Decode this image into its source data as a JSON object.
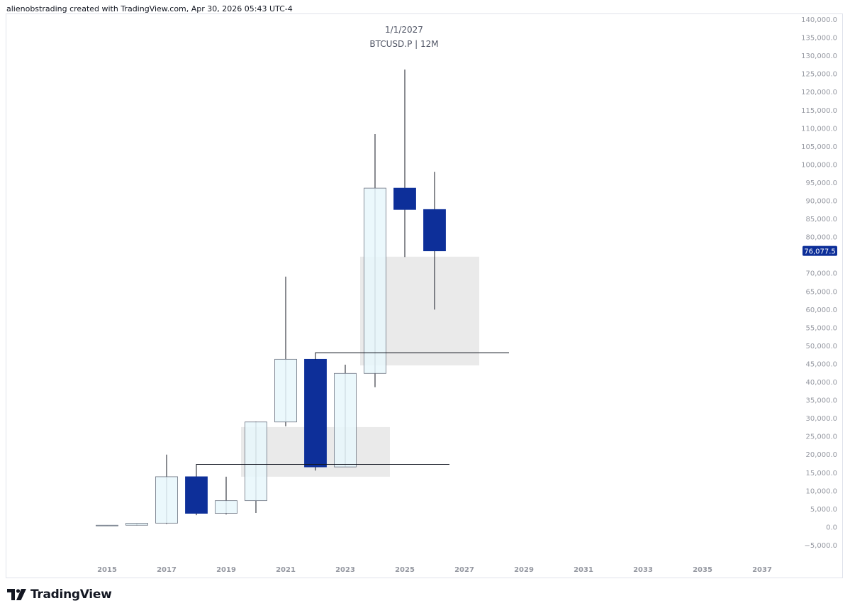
{
  "header": {
    "credit": "alienobstrading created with TradingView.com, Apr 30, 2026 05:43 UTC-4"
  },
  "chart_title": {
    "date": "1/1/2027",
    "symbol": "BTCUSD.P | 12M"
  },
  "brand": {
    "name": "TradingView"
  },
  "colors": {
    "up_fill": "#e8f7fc",
    "down_fill": "#0d2f99",
    "wick": "#131722",
    "zone": "#e6e6e6",
    "price_tag": "#0d2f99"
  },
  "chart_data": {
    "type": "candlestick",
    "timeframe": "12M",
    "ylim": [
      -5000,
      140000
    ],
    "y_ticks": [
      "140,000.0",
      "135,000.0",
      "130,000.0",
      "125,000.0",
      "120,000.0",
      "115,000.0",
      "110,000.0",
      "105,000.0",
      "100,000.0",
      "95,000.0",
      "90,000.0",
      "85,000.0",
      "80,000.0",
      "70,000.0",
      "65,000.0",
      "60,000.0",
      "55,000.0",
      "50,000.0",
      "45,000.0",
      "40,000.0",
      "35,000.0",
      "30,000.0",
      "25,000.0",
      "20,000.0",
      "15,000.0",
      "10,000.0",
      "5,000.0",
      "0.0",
      "−5,000.0"
    ],
    "x_ticks": [
      "2015",
      "2017",
      "2019",
      "2021",
      "2023",
      "2025",
      "2027",
      "2029",
      "2031",
      "2033",
      "2035",
      "2037"
    ],
    "last_price_label": "76,077.5",
    "last_price": 76077.5,
    "candles": [
      {
        "year": 2015,
        "open": 300,
        "high": 450,
        "low": 200,
        "close": 430
      },
      {
        "year": 2016,
        "open": 430,
        "high": 980,
        "low": 360,
        "close": 960
      },
      {
        "year": 2017,
        "open": 1000,
        "high": 19900,
        "low": 780,
        "close": 13800
      },
      {
        "year": 2018,
        "open": 13800,
        "high": 17200,
        "low": 3200,
        "close": 3700
      },
      {
        "year": 2019,
        "open": 3700,
        "high": 13800,
        "low": 3400,
        "close": 7200
      },
      {
        "year": 2020,
        "open": 7200,
        "high": 29000,
        "low": 3800,
        "close": 28900
      },
      {
        "year": 2021,
        "open": 28900,
        "high": 69000,
        "low": 27700,
        "close": 46200
      },
      {
        "year": 2022,
        "open": 46200,
        "high": 48000,
        "low": 15500,
        "close": 16500
      },
      {
        "year": 2023,
        "open": 16500,
        "high": 44700,
        "low": 16500,
        "close": 42300
      },
      {
        "year": 2024,
        "open": 42300,
        "high": 108300,
        "low": 38500,
        "close": 93400
      },
      {
        "year": 2025,
        "open": 93400,
        "high": 126100,
        "low": 74400,
        "close": 87500
      },
      {
        "year": 2026,
        "open": 87500,
        "high": 97900,
        "low": 59900,
        "close": 76077.5
      }
    ],
    "zones": [
      {
        "from_year": 2019.5,
        "to_year": 2024.5,
        "bottom": 13800,
        "top": 27500
      },
      {
        "from_year": 2023.5,
        "to_year": 2027.5,
        "bottom": 44500,
        "top": 74500
      }
    ],
    "levels": [
      {
        "from_year": 2018,
        "to_year": 2026.5,
        "value": 17200
      },
      {
        "from_year": 2022,
        "to_year": 2028.5,
        "value": 48000
      }
    ]
  }
}
